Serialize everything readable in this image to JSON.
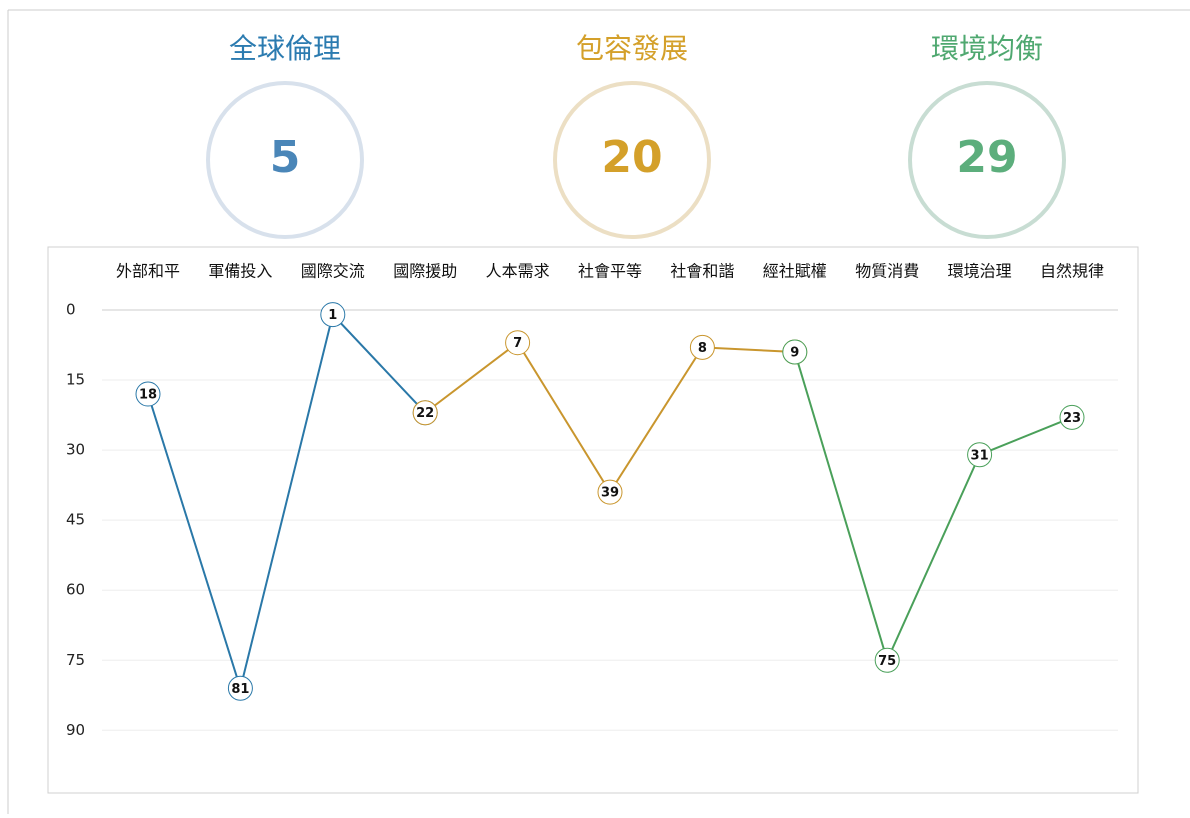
{
  "scores": [
    {
      "name": "全球倫理",
      "value": 5,
      "color": "#2b7bb0",
      "number_color": "#4a86b8",
      "ring_color": "#d8e1ec"
    },
    {
      "name": "包容發展",
      "value": 20,
      "color": "#d4a02a",
      "number_color": "#d4a02a",
      "ring_color": "#ecdfc4"
    },
    {
      "name": "環境均衡",
      "value": 29,
      "color": "#4fa870",
      "number_color": "#5cae7c",
      "ring_color": "#c8ddd3"
    }
  ],
  "chart_data": {
    "type": "line",
    "categories": [
      "外部和平",
      "軍備投入",
      "國際交流",
      "國際援助",
      "人本需求",
      "社會平等",
      "社會和諧",
      "經社賦權",
      "物質消費",
      "環境治理",
      "自然規律"
    ],
    "series": [
      {
        "color": "#2a78a8",
        "values": [
          18,
          81,
          1,
          22,
          null,
          null,
          null,
          null,
          null,
          null,
          null
        ]
      },
      {
        "color": "#c9962e",
        "values": [
          null,
          null,
          null,
          22,
          7,
          39,
          8,
          9,
          null,
          null,
          null
        ]
      },
      {
        "color": "#4aa05a",
        "values": [
          null,
          null,
          null,
          null,
          null,
          null,
          null,
          9,
          75,
          31,
          23
        ]
      }
    ],
    "ylim": [
      0,
      100
    ],
    "y_reversed": true,
    "yticks": [
      0,
      15,
      30,
      45,
      60,
      75,
      90
    ],
    "grid": true
  }
}
